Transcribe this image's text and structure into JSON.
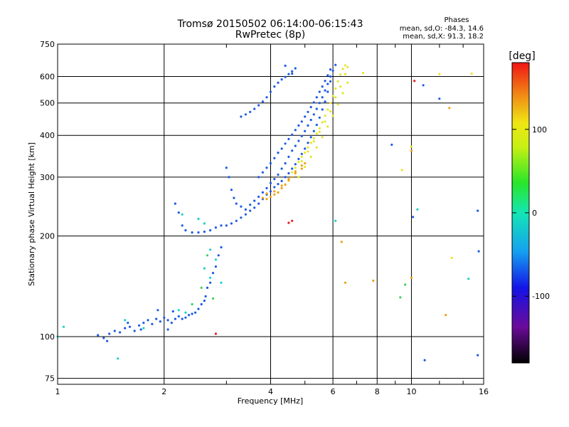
{
  "chart_data": {
    "type": "scatter",
    "title": "Tromsø 20150502 06:14:00-06:15:43",
    "subtitle": "RwPretec (8p)",
    "xlabel": "Frequency [MHz]",
    "ylabel": "Stationary phase Virtual Height [km]",
    "x_scale": "log",
    "y_scale": "log",
    "xlim": [
      1,
      16
    ],
    "ylim": [
      72,
      750
    ],
    "x_ticks": [
      1,
      2,
      4,
      6,
      8,
      10,
      16
    ],
    "y_ticks": [
      75,
      100,
      200,
      300,
      400,
      500,
      600,
      750
    ],
    "grid": true,
    "stats": {
      "heading": "Phases",
      "line_o": "mean, sd,O: -84.3, 14.6",
      "line_x": "mean, sd,X:  91.3, 18.2"
    },
    "colorbar": {
      "label": "[deg]",
      "range": [
        -180,
        180
      ],
      "ticks": [
        "100",
        "0",
        "-100"
      ],
      "tick_values": [
        100,
        0,
        -100
      ]
    },
    "series": [
      {
        "phase": -100,
        "color": "#1e5ae6",
        "points": [
          [
            1.3,
            101
          ],
          [
            1.35,
            99
          ],
          [
            1.4,
            102
          ],
          [
            1.45,
            104
          ],
          [
            1.5,
            103
          ],
          [
            1.55,
            106
          ],
          [
            1.6,
            107
          ],
          [
            1.65,
            104
          ],
          [
            1.7,
            108
          ],
          [
            1.75,
            110
          ],
          [
            1.8,
            112
          ],
          [
            1.85,
            109
          ],
          [
            1.9,
            113
          ],
          [
            1.95,
            111
          ],
          [
            2.0,
            114
          ],
          [
            2.05,
            112
          ],
          [
            2.1,
            110
          ],
          [
            2.15,
            113
          ],
          [
            2.2,
            115
          ],
          [
            2.25,
            113
          ],
          [
            2.3,
            114
          ],
          [
            2.35,
            116
          ],
          [
            2.4,
            117
          ],
          [
            2.45,
            118
          ],
          [
            2.5,
            121
          ],
          [
            2.55,
            125
          ],
          [
            2.6,
            128
          ],
          [
            2.65,
            140
          ],
          [
            2.7,
            145
          ],
          [
            2.75,
            155
          ],
          [
            2.8,
            162
          ],
          [
            2.85,
            175
          ],
          [
            2.9,
            185
          ],
          [
            1.38,
            97
          ],
          [
            1.58,
            110
          ],
          [
            1.72,
            105
          ],
          [
            1.92,
            120
          ],
          [
            2.12,
            119
          ],
          [
            2.05,
            105
          ],
          [
            2.62,
            132
          ],
          [
            2.15,
            250
          ],
          [
            2.2,
            235
          ],
          [
            2.25,
            215
          ],
          [
            2.3,
            208
          ],
          [
            2.4,
            205
          ],
          [
            2.5,
            205
          ],
          [
            2.6,
            206
          ],
          [
            2.7,
            208
          ],
          [
            2.8,
            212
          ],
          [
            2.9,
            215
          ],
          [
            3.0,
            215
          ],
          [
            3.1,
            218
          ],
          [
            3.2,
            222
          ],
          [
            3.3,
            227
          ],
          [
            3.4,
            232
          ],
          [
            3.5,
            238
          ],
          [
            3.6,
            243
          ],
          [
            3.7,
            250
          ],
          [
            3.8,
            258
          ],
          [
            3.9,
            266
          ],
          [
            4.0,
            272
          ],
          [
            4.1,
            280
          ],
          [
            4.2,
            286
          ],
          [
            4.3,
            292
          ],
          [
            4.4,
            300
          ],
          [
            4.5,
            308
          ],
          [
            4.6,
            318
          ],
          [
            4.7,
            328
          ],
          [
            4.8,
            340
          ],
          [
            4.9,
            352
          ],
          [
            5.0,
            365
          ],
          [
            5.1,
            380
          ],
          [
            5.2,
            395
          ],
          [
            5.3,
            412
          ],
          [
            5.4,
            430
          ],
          [
            5.5,
            452
          ],
          [
            5.6,
            478
          ],
          [
            5.7,
            505
          ],
          [
            5.8,
            540
          ],
          [
            5.9,
            580
          ],
          [
            6.0,
            625
          ],
          [
            6.1,
            650
          ],
          [
            3.0,
            320
          ],
          [
            3.05,
            300
          ],
          [
            3.1,
            275
          ],
          [
            3.15,
            260
          ],
          [
            3.2,
            250
          ],
          [
            3.3,
            245
          ],
          [
            3.4,
            240
          ],
          [
            3.5,
            248
          ],
          [
            3.6,
            255
          ],
          [
            3.7,
            262
          ],
          [
            3.8,
            270
          ],
          [
            3.9,
            278
          ],
          [
            4.0,
            288
          ],
          [
            4.1,
            296
          ],
          [
            4.2,
            305
          ],
          [
            4.3,
            318
          ],
          [
            4.4,
            330
          ],
          [
            4.5,
            345
          ],
          [
            4.6,
            360
          ],
          [
            4.7,
            372
          ],
          [
            4.8,
            385
          ],
          [
            4.9,
            398
          ],
          [
            5.0,
            412
          ],
          [
            5.1,
            428
          ],
          [
            5.2,
            445
          ],
          [
            5.3,
            462
          ],
          [
            5.4,
            480
          ],
          [
            5.5,
            500
          ],
          [
            5.6,
            520
          ],
          [
            5.7,
            545
          ],
          [
            5.8,
            570
          ],
          [
            5.9,
            600
          ],
          [
            3.7,
            300
          ],
          [
            3.8,
            310
          ],
          [
            3.9,
            320
          ],
          [
            4.0,
            330
          ],
          [
            4.1,
            342
          ],
          [
            4.2,
            355
          ],
          [
            4.3,
            365
          ],
          [
            4.4,
            378
          ],
          [
            4.5,
            390
          ],
          [
            4.6,
            402
          ],
          [
            4.7,
            415
          ],
          [
            4.8,
            428
          ],
          [
            4.9,
            440
          ],
          [
            5.0,
            455
          ],
          [
            5.1,
            470
          ],
          [
            5.2,
            486
          ],
          [
            5.3,
            502
          ],
          [
            5.4,
            520
          ],
          [
            5.5,
            540
          ],
          [
            5.6,
            560
          ],
          [
            5.7,
            582
          ],
          [
            5.8,
            605
          ],
          [
            5.9,
            630
          ],
          [
            3.3,
            455
          ],
          [
            3.4,
            462
          ],
          [
            3.5,
            470
          ],
          [
            3.6,
            480
          ],
          [
            3.7,
            492
          ],
          [
            3.8,
            505
          ],
          [
            3.9,
            520
          ],
          [
            4.0,
            540
          ],
          [
            4.1,
            560
          ],
          [
            4.2,
            575
          ],
          [
            4.3,
            588
          ],
          [
            4.4,
            598
          ],
          [
            4.5,
            610
          ],
          [
            4.6,
            622
          ],
          [
            4.7,
            635
          ],
          [
            4.4,
            646
          ],
          [
            4.6,
            612
          ],
          [
            8.8,
            375
          ],
          [
            10.1,
            228
          ],
          [
            10.8,
            565
          ],
          [
            12.0,
            515
          ],
          [
            15.4,
            238
          ],
          [
            15.5,
            180
          ],
          [
            15.4,
            88
          ],
          [
            10.9,
            85
          ]
        ]
      },
      {
        "phase": 100,
        "color": "#e6e62a",
        "points": [
          [
            4.6,
            310
          ],
          [
            4.7,
            320
          ],
          [
            4.8,
            333
          ],
          [
            4.9,
            345
          ],
          [
            5.0,
            355
          ],
          [
            5.1,
            368
          ],
          [
            5.2,
            380
          ],
          [
            5.3,
            392
          ],
          [
            5.4,
            405
          ],
          [
            5.5,
            420
          ],
          [
            5.6,
            438
          ],
          [
            5.7,
            458
          ],
          [
            5.8,
            478
          ],
          [
            5.9,
            500
          ],
          [
            6.0,
            525
          ],
          [
            6.1,
            552
          ],
          [
            6.2,
            580
          ],
          [
            6.3,
            608
          ],
          [
            6.4,
            632
          ],
          [
            6.5,
            648
          ],
          [
            4.8,
            300
          ],
          [
            5.0,
            322
          ],
          [
            5.2,
            345
          ],
          [
            5.4,
            368
          ],
          [
            5.6,
            395
          ],
          [
            5.8,
            425
          ],
          [
            6.0,
            458
          ],
          [
            6.2,
            495
          ],
          [
            6.4,
            535
          ],
          [
            6.6,
            575
          ],
          [
            6.5,
            610
          ],
          [
            6.6,
            640
          ],
          [
            6.3,
            560
          ],
          [
            6.1,
            520
          ],
          [
            5.9,
            472
          ],
          [
            5.7,
            440
          ],
          [
            5.5,
            410
          ],
          [
            5.3,
            384
          ],
          [
            5.1,
            358
          ],
          [
            4.9,
            335
          ],
          [
            7.3,
            615
          ],
          [
            9.4,
            315
          ],
          [
            12.0,
            610
          ],
          [
            14.8,
            612
          ],
          [
            13.0,
            172
          ],
          [
            10.0,
            370
          ]
        ]
      },
      {
        "phase": 150,
        "color": "#f0a014",
        "points": [
          [
            3.8,
            260
          ],
          [
            3.9,
            258
          ],
          [
            4.0,
            262
          ],
          [
            4.1,
            266
          ],
          [
            4.2,
            270
          ],
          [
            4.3,
            278
          ],
          [
            4.4,
            285
          ],
          [
            4.5,
            293
          ],
          [
            4.6,
            300
          ],
          [
            4.7,
            308
          ],
          [
            3.9,
            268
          ],
          [
            4.1,
            272
          ],
          [
            4.3,
            283
          ],
          [
            4.5,
            296
          ],
          [
            4.7,
            312
          ],
          [
            4.9,
            325
          ],
          [
            5.0,
            330
          ],
          [
            4.9,
            318
          ],
          [
            6.35,
            192
          ],
          [
            6.5,
            145
          ],
          [
            12.8,
            483
          ],
          [
            12.5,
            116
          ],
          [
            10.0,
            150
          ],
          [
            10.0,
            360
          ],
          [
            7.8,
            147
          ]
        ]
      },
      {
        "phase": 0,
        "color": "#19d2c8",
        "points": [
          [
            2.25,
            232
          ],
          [
            2.5,
            225
          ],
          [
            2.6,
            218
          ],
          [
            2.7,
            182
          ],
          [
            2.8,
            170
          ],
          [
            2.6,
            160
          ],
          [
            2.7,
            150
          ],
          [
            2.9,
            145
          ],
          [
            2.2,
            120
          ],
          [
            2.3,
            118
          ],
          [
            1.55,
            112
          ],
          [
            1.75,
            106
          ],
          [
            1.48,
            86
          ],
          [
            1.04,
            107
          ],
          [
            1.0,
            100
          ],
          [
            6.1,
            222
          ],
          [
            14.5,
            149
          ],
          [
            10.4,
            240
          ]
        ]
      },
      {
        "phase": 50,
        "color": "#3cd25a",
        "points": [
          [
            2.55,
            140
          ],
          [
            2.75,
            130
          ],
          [
            2.65,
            175
          ],
          [
            9.3,
            131
          ],
          [
            9.6,
            143
          ],
          [
            2.4,
            125
          ]
        ]
      },
      {
        "phase": 175,
        "color": "#e61e1e",
        "points": [
          [
            2.8,
            102
          ],
          [
            4.5,
            219
          ],
          [
            4.6,
            222
          ],
          [
            10.2,
            582
          ]
        ]
      }
    ]
  }
}
